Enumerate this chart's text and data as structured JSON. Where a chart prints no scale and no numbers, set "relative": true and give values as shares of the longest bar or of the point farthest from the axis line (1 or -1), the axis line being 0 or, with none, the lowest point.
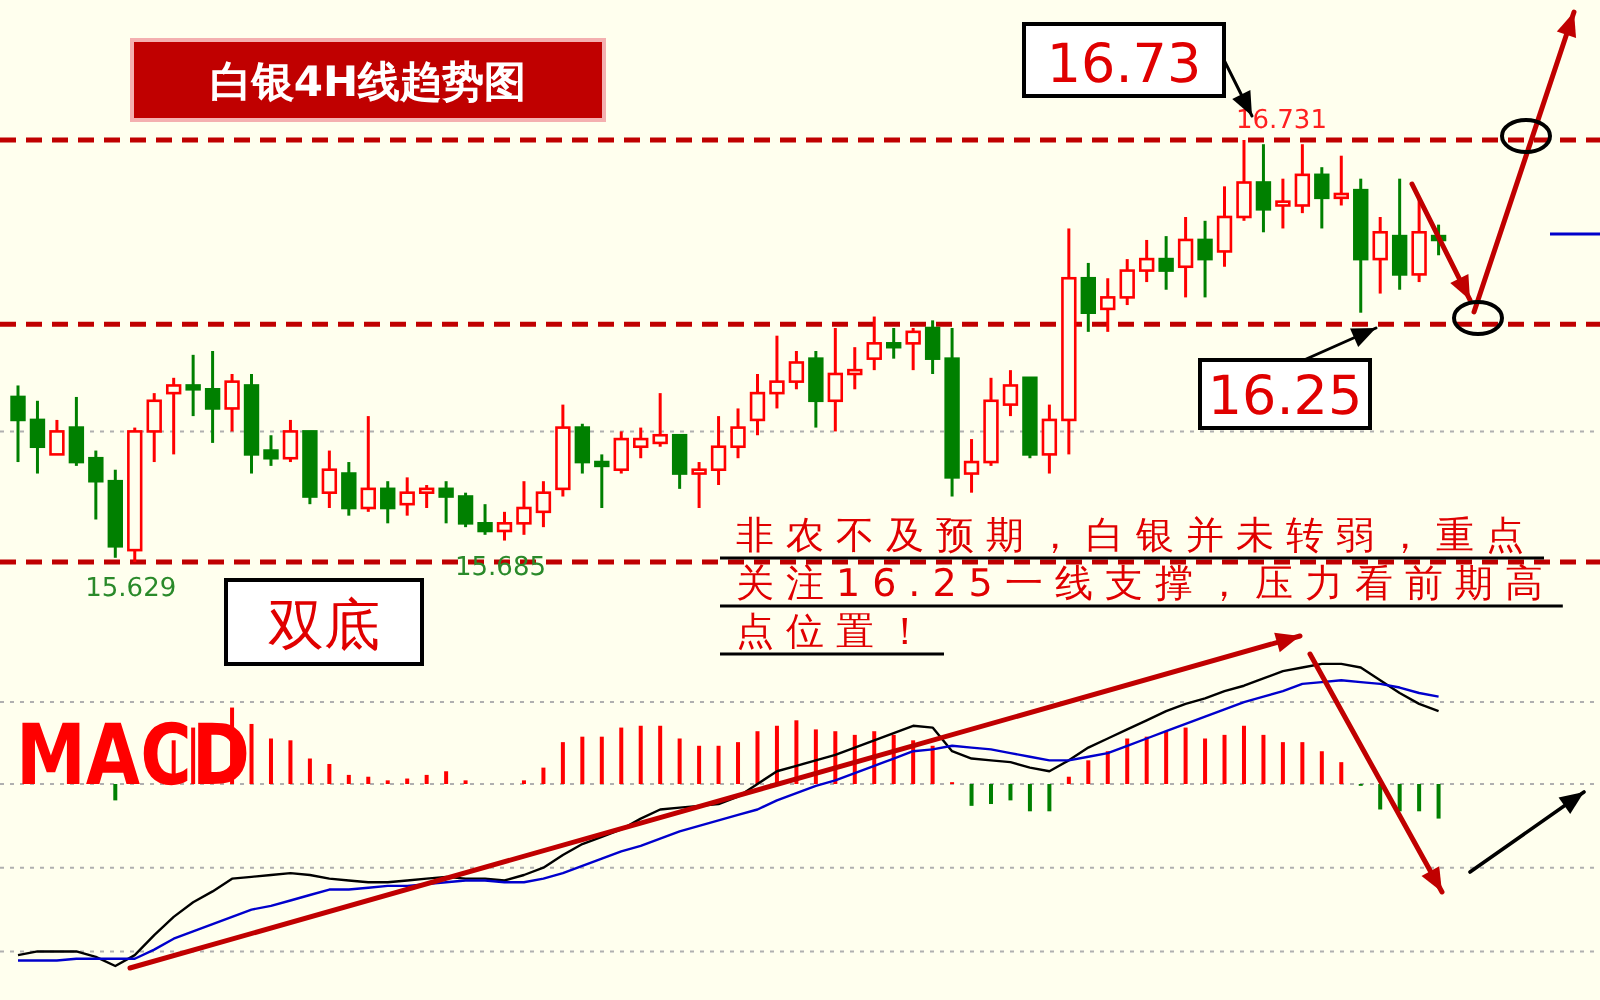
{
  "chart_data": [
    {
      "type": "candlestick",
      "title": "白银4H线趋势图",
      "tick_labels": false,
      "categories": [
        null,
        null,
        null,
        null,
        null,
        null,
        null,
        null,
        null,
        null,
        null,
        null,
        null,
        null,
        null,
        null,
        null,
        null,
        null,
        null,
        null,
        null,
        null,
        null,
        null,
        null,
        null,
        null,
        null,
        null,
        null,
        null,
        null,
        null,
        null,
        null,
        null,
        null,
        null,
        null,
        null,
        null,
        null,
        null,
        null,
        null,
        null,
        null,
        null,
        null,
        null,
        null,
        null,
        null,
        null,
        null,
        null,
        null,
        null,
        null,
        null,
        null,
        null,
        null,
        null,
        null,
        null,
        null,
        null,
        null,
        null,
        null,
        null,
        null
      ],
      "ohlc": [
        [
          16.06,
          16.09,
          15.89,
          16.0
        ],
        [
          16.0,
          16.05,
          15.86,
          15.93
        ],
        [
          15.91,
          16.0,
          15.91,
          15.97
        ],
        [
          15.98,
          16.06,
          15.88,
          15.89
        ],
        [
          15.9,
          15.92,
          15.74,
          15.84
        ],
        [
          15.84,
          15.87,
          15.64,
          15.67
        ],
        [
          15.66,
          15.98,
          15.629,
          15.97
        ],
        [
          15.97,
          16.07,
          15.89,
          16.05
        ],
        [
          16.07,
          16.11,
          15.91,
          16.09
        ],
        [
          16.09,
          16.17,
          16.01,
          16.08
        ],
        [
          16.08,
          16.18,
          15.94,
          16.03
        ],
        [
          16.03,
          16.12,
          15.97,
          16.1
        ],
        [
          16.09,
          16.12,
          15.86,
          15.91
        ],
        [
          15.92,
          15.96,
          15.88,
          15.9
        ],
        [
          15.9,
          16.0,
          15.89,
          15.97
        ],
        [
          15.97,
          15.97,
          15.78,
          15.8
        ],
        [
          15.81,
          15.92,
          15.77,
          15.87
        ],
        [
          15.86,
          15.89,
          15.75,
          15.77
        ],
        [
          15.77,
          16.01,
          15.76,
          15.82
        ],
        [
          15.82,
          15.84,
          15.73,
          15.77
        ],
        [
          15.78,
          15.85,
          15.75,
          15.81
        ],
        [
          15.81,
          15.83,
          15.77,
          15.82
        ],
        [
          15.82,
          15.84,
          15.73,
          15.8
        ],
        [
          15.8,
          15.81,
          15.72,
          15.73
        ],
        [
          15.73,
          15.78,
          15.7,
          15.71
        ],
        [
          15.71,
          15.76,
          15.685,
          15.73
        ],
        [
          15.73,
          15.84,
          15.7,
          15.77
        ],
        [
          15.76,
          15.84,
          15.72,
          15.81
        ],
        [
          15.82,
          16.04,
          15.8,
          15.98
        ],
        [
          15.98,
          15.99,
          15.86,
          15.89
        ],
        [
          15.89,
          15.91,
          15.77,
          15.88
        ],
        [
          15.87,
          15.97,
          15.86,
          15.95
        ],
        [
          15.93,
          15.98,
          15.9,
          15.95
        ],
        [
          15.94,
          16.07,
          15.93,
          15.96
        ],
        [
          15.96,
          15.96,
          15.82,
          15.86
        ],
        [
          15.86,
          15.89,
          15.77,
          15.87
        ],
        [
          15.87,
          16.01,
          15.83,
          15.93
        ],
        [
          15.93,
          16.03,
          15.9,
          15.98
        ],
        [
          16.0,
          16.12,
          15.96,
          16.07
        ],
        [
          16.07,
          16.22,
          16.03,
          16.1
        ],
        [
          16.1,
          16.18,
          16.08,
          16.15
        ],
        [
          16.16,
          16.18,
          15.98,
          16.05
        ],
        [
          16.05,
          16.24,
          15.97,
          16.12
        ],
        [
          16.12,
          16.19,
          16.08,
          16.13
        ],
        [
          16.16,
          16.27,
          16.13,
          16.2
        ],
        [
          16.2,
          16.24,
          16.16,
          16.19
        ],
        [
          16.2,
          16.24,
          16.13,
          16.23
        ],
        [
          16.24,
          16.26,
          16.12,
          16.16
        ],
        [
          16.16,
          16.24,
          15.8,
          15.85
        ],
        [
          15.86,
          15.95,
          15.81,
          15.89
        ],
        [
          15.89,
          16.11,
          15.88,
          16.05
        ],
        [
          16.04,
          16.13,
          16.01,
          16.09
        ],
        [
          16.11,
          16.11,
          15.9,
          15.91
        ],
        [
          15.91,
          16.04,
          15.86,
          16.0
        ],
        [
          16.0,
          16.5,
          15.91,
          16.37
        ],
        [
          16.37,
          16.41,
          16.23,
          16.28
        ],
        [
          16.29,
          16.37,
          16.23,
          16.32
        ],
        [
          16.32,
          16.42,
          16.3,
          16.39
        ],
        [
          16.39,
          16.47,
          16.36,
          16.42
        ],
        [
          16.42,
          16.48,
          16.34,
          16.39
        ],
        [
          16.4,
          16.53,
          16.32,
          16.47
        ],
        [
          16.47,
          16.52,
          16.32,
          16.42
        ],
        [
          16.44,
          16.61,
          16.4,
          16.53
        ],
        [
          16.53,
          16.731,
          16.52,
          16.62
        ],
        [
          16.62,
          16.72,
          16.49,
          16.55
        ],
        [
          16.56,
          16.63,
          16.5,
          16.57
        ],
        [
          16.56,
          16.72,
          16.54,
          16.64
        ],
        [
          16.64,
          16.66,
          16.5,
          16.58
        ],
        [
          16.58,
          16.69,
          16.56,
          16.59
        ],
        [
          16.6,
          16.63,
          16.28,
          16.42
        ],
        [
          16.42,
          16.53,
          16.33,
          16.49
        ],
        [
          16.48,
          16.63,
          16.34,
          16.38
        ],
        [
          16.38,
          16.58,
          16.36,
          16.49
        ],
        [
          16.48,
          16.51,
          16.43,
          16.47
        ]
      ],
      "ref_lines": [
        {
          "axis": "y",
          "value": 15.97,
          "line_style": "dotted",
          "color": "#b0b0b0"
        },
        {
          "axis": "y",
          "value": 16.731,
          "line_style": "dashed",
          "color": "#c00000"
        },
        {
          "axis": "y",
          "value": 16.25,
          "line_style": "dashed",
          "color": "#c00000"
        },
        {
          "axis": "y",
          "value": 15.629,
          "line_style": "dashed",
          "color": "#c00000"
        }
      ],
      "annotations": [
        {
          "text": "16.731",
          "y": 16.731
        },
        {
          "text": "15.629",
          "y": 15.629
        },
        {
          "text": "15.685",
          "y": 15.685
        },
        "16.73",
        {
          "text": "16.25",
          "y": 16.25
        },
        "双底",
        "非农不及预期，白银并未转弱，重点关注16.25一线支撑，压力看前期高点位置！"
      ]
    },
    {
      "type": "bar",
      "title": "MACD",
      "relative": true,
      "tick_labels": false,
      "categories": [
        null,
        null,
        null,
        null,
        null,
        null,
        null,
        null,
        null,
        null,
        null,
        null,
        null,
        null,
        null,
        null,
        null,
        null,
        null,
        null,
        null,
        null,
        null,
        null,
        null,
        null,
        null,
        null,
        null,
        null,
        null,
        null,
        null,
        null,
        null,
        null,
        null,
        null,
        null,
        null,
        null,
        null,
        null,
        null,
        null,
        null,
        null,
        null,
        null,
        null,
        null,
        null,
        null,
        null,
        null,
        null,
        null,
        null,
        null,
        null,
        null,
        null,
        null,
        null,
        null,
        null,
        null,
        null,
        null,
        null,
        null,
        null,
        null,
        null
      ],
      "series": [
        {
          "color": "#ff0000",
          "values": [
            null,
            null,
            null,
            null,
            null,
            null,
            0.01,
            null,
            0.24,
            0.31,
            null,
            0.42,
            0.33,
            0.25,
            0.24,
            0.14,
            0.11,
            0.05,
            0.04,
            0.02,
            0.03,
            0.05,
            0.07,
            0.02,
            null,
            null,
            0.02,
            0.09,
            0.23,
            0.26,
            0.26,
            0.31,
            0.32,
            0.32,
            0.25,
            0.21,
            0.21,
            0.23,
            0.29,
            0.32,
            0.35,
            0.3,
            0.29,
            0.27,
            0.29,
            0.27,
            0.24,
            0.21,
            0.01,
            null,
            null,
            null,
            null,
            null,
            0.04,
            0.13,
            0.18,
            0.25,
            0.26,
            0.29,
            0.31,
            0.25,
            0.27,
            0.32,
            0.27,
            0.23,
            0.23,
            0.18,
            0.12,
            null,
            null,
            null,
            null,
            null
          ]
        },
        {
          "color": "#008000",
          "values": [
            null,
            null,
            null,
            null,
            null,
            -0.09,
            null,
            null,
            null,
            null,
            null,
            null,
            null,
            null,
            null,
            null,
            null,
            null,
            null,
            null,
            null,
            null,
            null,
            null,
            null,
            null,
            null,
            null,
            null,
            null,
            null,
            null,
            null,
            null,
            null,
            null,
            null,
            null,
            null,
            null,
            null,
            null,
            null,
            null,
            null,
            null,
            null,
            null,
            null,
            -0.12,
            -0.11,
            -0.09,
            -0.15,
            -0.15,
            null,
            null,
            null,
            null,
            null,
            null,
            null,
            null,
            null,
            null,
            null,
            null,
            null,
            null,
            null,
            -0.01,
            -0.14,
            -0.15,
            -0.15,
            -0.19
          ]
        },
        {
          "type": "line",
          "color": "#000000",
          "values": [
            -0.94,
            -0.92,
            -0.92,
            -0.92,
            -0.95,
            -1,
            -0.94,
            -0.83,
            -0.73,
            -0.65,
            -0.59,
            -0.52,
            -0.51,
            -0.5,
            -0.49,
            -0.5,
            -0.52,
            -0.53,
            -0.54,
            -0.54,
            -0.53,
            -0.52,
            -0.51,
            -0.52,
            -0.52,
            -0.53,
            -0.5,
            -0.46,
            -0.39,
            -0.33,
            -0.29,
            -0.25,
            -0.19,
            -0.14,
            -0.13,
            -0.12,
            -0.11,
            -0.07,
            0.0,
            0.07,
            0.1,
            0.13,
            0.16,
            0.2,
            0.24,
            0.28,
            0.32,
            0.31,
            0.18,
            0.14,
            0.13,
            0.12,
            0.09,
            0.07,
            0.13,
            0.2,
            0.25,
            0.3,
            0.35,
            0.4,
            0.44,
            0.47,
            0.51,
            0.54,
            0.58,
            0.62,
            0.64,
            0.66,
            0.66,
            0.64,
            0.57,
            0.5,
            0.44,
            0.4
          ]
        },
        {
          "type": "line",
          "color": "#0000cc",
          "values": [
            -0.97,
            -0.97,
            -0.97,
            -0.96,
            -0.96,
            -0.96,
            -0.96,
            -0.91,
            -0.85,
            -0.81,
            -0.77,
            -0.73,
            -0.69,
            -0.67,
            -0.64,
            -0.61,
            -0.58,
            -0.58,
            -0.57,
            -0.56,
            -0.56,
            -0.55,
            -0.54,
            -0.53,
            -0.53,
            -0.54,
            -0.54,
            -0.52,
            -0.49,
            -0.45,
            -0.41,
            -0.37,
            -0.34,
            -0.3,
            -0.26,
            -0.23,
            -0.2,
            -0.17,
            -0.14,
            -0.09,
            -0.05,
            -0.01,
            0.02,
            0.06,
            0.1,
            0.14,
            0.18,
            0.19,
            0.21,
            0.2,
            0.19,
            0.17,
            0.15,
            0.13,
            0.13,
            0.15,
            0.17,
            0.21,
            0.25,
            0.29,
            0.33,
            0.37,
            0.41,
            0.45,
            0.48,
            0.51,
            0.55,
            0.56,
            0.57,
            0.56,
            0.55,
            0.53,
            0.5,
            0.48
          ]
        }
      ],
      "ref_lines": [
        {
          "axis": "y",
          "value": 0.45,
          "line_style": "dotted",
          "color": "#b0b0b0"
        },
        {
          "axis": "y",
          "value": 0,
          "line_style": "dotted",
          "color": "#b0b0b0"
        },
        {
          "axis": "y",
          "value": -0.46,
          "line_style": "dotted",
          "color": "#b0b0b0"
        },
        {
          "axis": "y",
          "value": -0.92,
          "line_style": "dotted",
          "color": "#b0b0b0"
        }
      ]
    }
  ]
}
